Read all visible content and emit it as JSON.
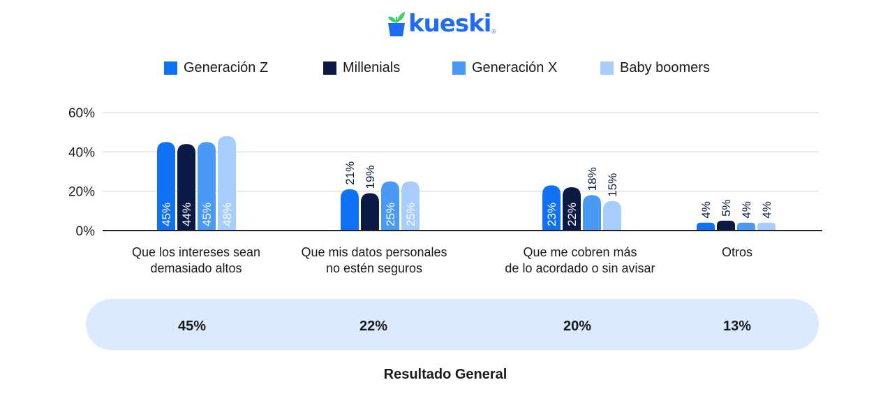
{
  "brand": {
    "name": "kueski",
    "registered": "®"
  },
  "colors": {
    "brand": "#1f6cf0",
    "plant": "#3ccf6e",
    "grid": "#d0d0d0",
    "axis": "#222222",
    "pill": "#dbeafe",
    "label_dark": "#0d1a3d"
  },
  "chart_data": {
    "type": "bar",
    "ylim": [
      0,
      60
    ],
    "yticks": [
      0,
      20,
      40,
      60
    ],
    "ytick_labels": [
      "0%",
      "20%",
      "40%",
      "60%"
    ],
    "grid": true,
    "legend_position": "top-center",
    "categories": [
      [
        "Que los intereses sean",
        "demasiado altos"
      ],
      [
        "Que mis datos personales",
        "no estén seguros"
      ],
      [
        "Que me cobren más",
        "de lo acordado o sin avisar"
      ],
      [
        "Otros"
      ]
    ],
    "series": [
      {
        "name": "Generación Z",
        "color": "#0f72f5",
        "values": [
          45,
          21,
          23,
          4
        ],
        "labels": [
          "45%",
          "21%",
          "23%",
          "4%"
        ]
      },
      {
        "name": "Millenials",
        "color": "#0b1a45",
        "values": [
          44,
          19,
          22,
          5
        ],
        "labels": [
          "44%",
          "19%",
          "22%",
          "5%"
        ]
      },
      {
        "name": "Generación X",
        "color": "#4a9af5",
        "values": [
          45,
          25,
          18,
          4
        ],
        "labels": [
          "45%",
          "25%",
          "18%",
          "4%"
        ]
      },
      {
        "name": "Baby boomers",
        "color": "#a6cdfb",
        "values": [
          48,
          25,
          15,
          4
        ],
        "labels": [
          "48%",
          "25%",
          "15%",
          "4%"
        ]
      }
    ]
  },
  "results": {
    "values": [
      "45%",
      "22%",
      "20%",
      "13%"
    ],
    "caption": "Resultado General"
  }
}
